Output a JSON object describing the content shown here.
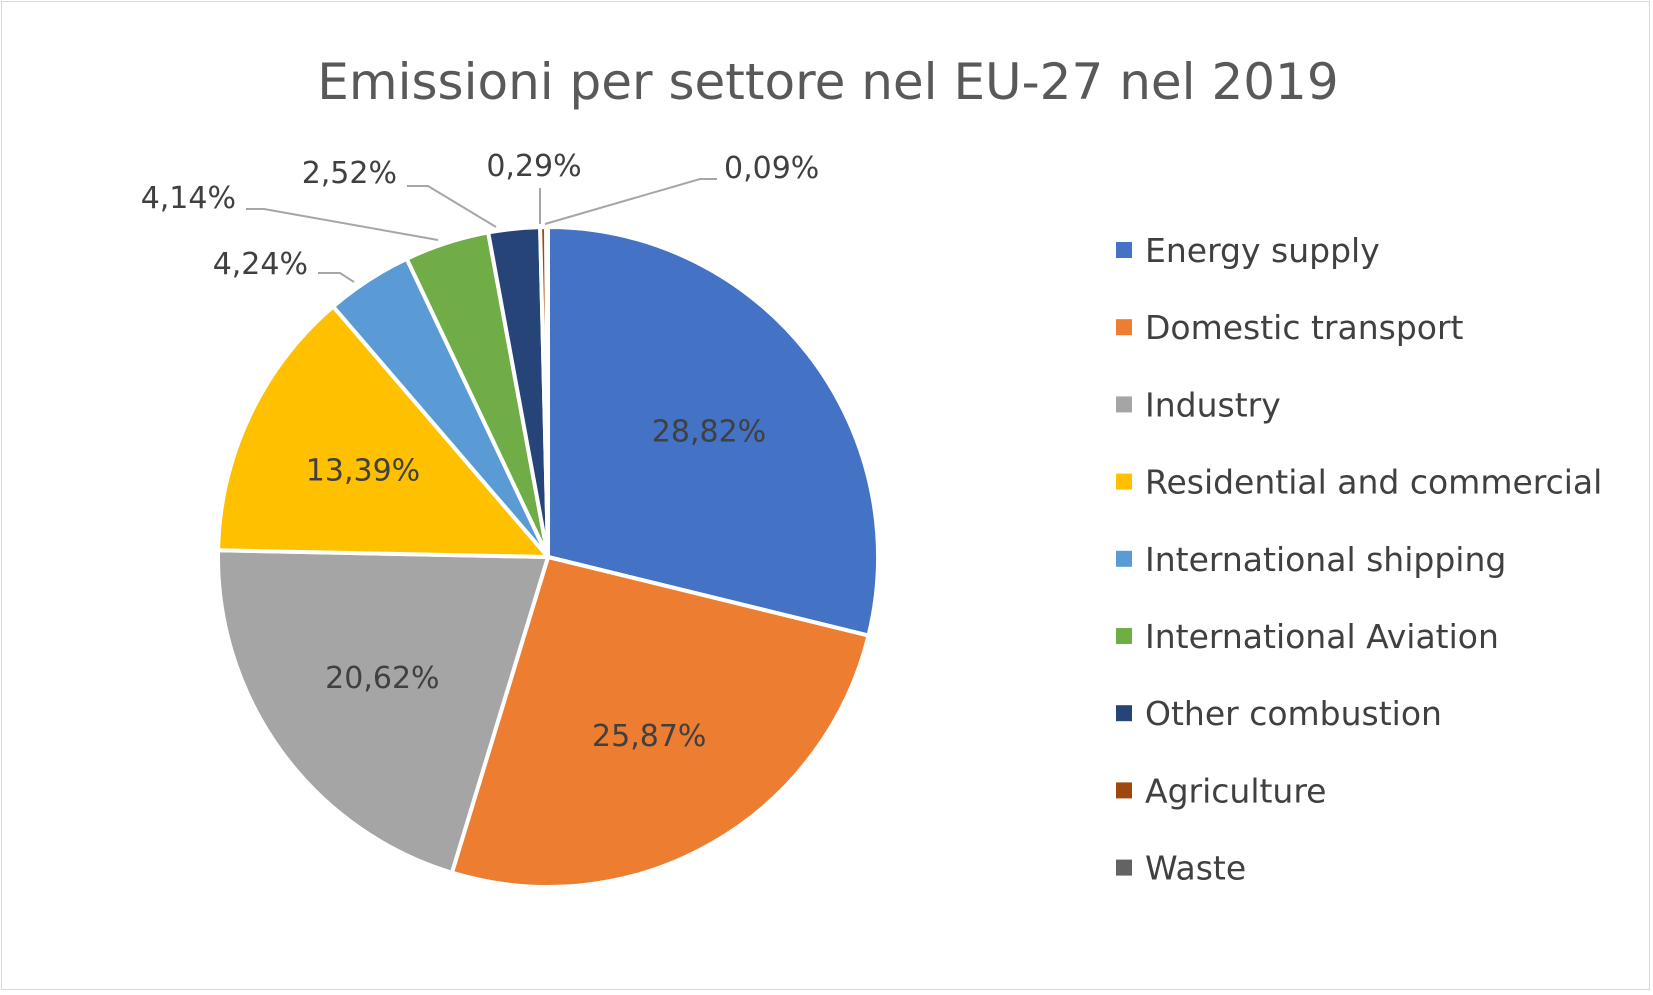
{
  "chart_data": {
    "type": "pie",
    "title": "Emissioni per settore nel EU-27 nel 2019",
    "legend_position": "right",
    "slices": [
      {
        "name": "Energy supply",
        "value": 28.82,
        "label": "28,82%",
        "color": "#4472C4"
      },
      {
        "name": "Domestic transport",
        "value": 25.87,
        "label": "25,87%",
        "color": "#ED7D31"
      },
      {
        "name": "Industry",
        "value": 20.62,
        "label": "20,62%",
        "color": "#A5A5A5"
      },
      {
        "name": "Residential and commercial",
        "value": 13.39,
        "label": "13,39%",
        "color": "#FFC000"
      },
      {
        "name": "International shipping",
        "value": 4.24,
        "label": "4,24%",
        "color": "#5B9BD5"
      },
      {
        "name": "International Aviation",
        "value": 4.14,
        "label": "4,14%",
        "color": "#70AD47"
      },
      {
        "name": "Other combustion",
        "value": 2.52,
        "label": "2,52%",
        "color": "#264478"
      },
      {
        "name": "Agriculture",
        "value": 0.29,
        "label": "0,29%",
        "color": "#9E480E"
      },
      {
        "name": "Waste",
        "value": 0.09,
        "label": "0,09%",
        "color": "#636363"
      }
    ]
  }
}
